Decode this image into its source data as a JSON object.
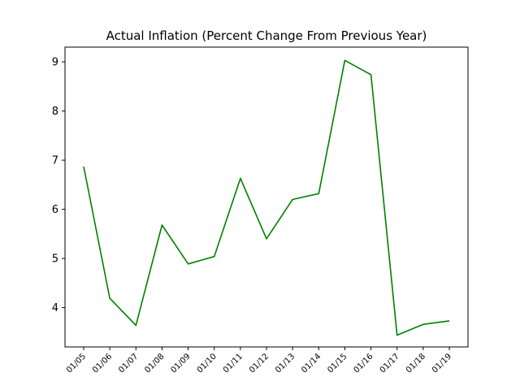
{
  "chart_data": {
    "type": "line",
    "title": "Actual Inflation (Percent Change From Previous Year)",
    "xlabel": "",
    "ylabel": "",
    "categories": [
      "01/05",
      "01/06",
      "01/07",
      "01/08",
      "01/09",
      "01/10",
      "01/11",
      "01/12",
      "01/13",
      "01/14",
      "01/15",
      "01/16",
      "01/17",
      "01/18",
      "01/19"
    ],
    "series": [
      {
        "values": [
          6.87,
          4.19,
          3.64,
          5.68,
          4.89,
          5.04,
          6.63,
          5.4,
          6.2,
          6.32,
          9.03,
          8.74,
          3.44,
          3.66,
          3.73
        ],
        "color": "#008000"
      }
    ],
    "ylim": [
      3.2,
      9.3
    ],
    "yticks": [
      4,
      5,
      6,
      7,
      8,
      9
    ],
    "grid": false,
    "legend": "none"
  }
}
